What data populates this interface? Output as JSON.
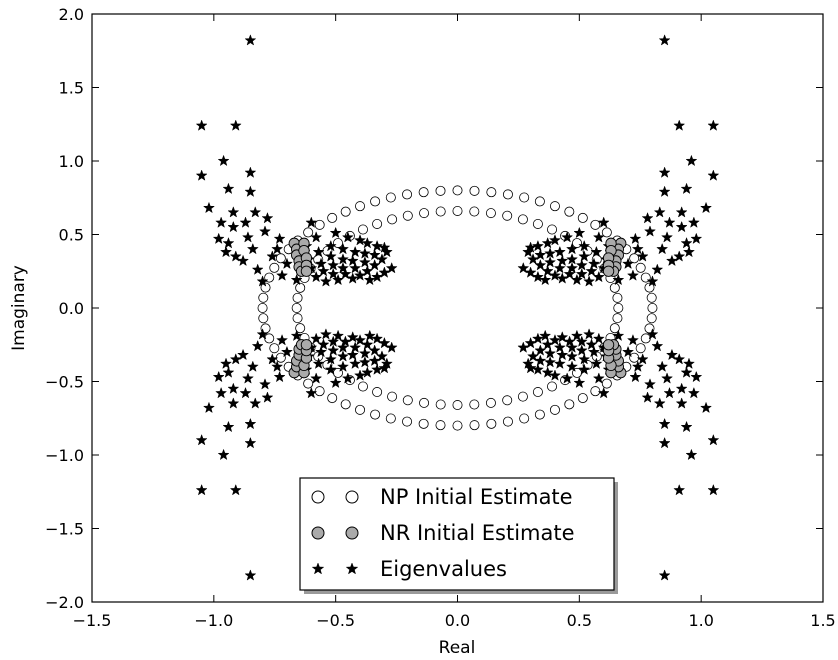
{
  "chart_data": {
    "type": "scatter",
    "xlabel": "Real",
    "ylabel": "Imaginary",
    "xlim": [
      -1.5,
      1.5
    ],
    "ylim": [
      -2.0,
      2.0
    ],
    "xticks": [
      -1.5,
      -1.0,
      -0.5,
      0.0,
      0.5,
      1.0,
      1.5
    ],
    "yticks": [
      -2.0,
      -1.5,
      -1.0,
      -0.5,
      0.0,
      0.5,
      1.0,
      1.5,
      2.0
    ],
    "xtick_labels": [
      "−1.5",
      "−1.0",
      "−0.5",
      "0.0",
      "0.5",
      "1.0",
      "1.5"
    ],
    "ytick_labels": [
      "−2.0",
      "−1.5",
      "−1.0",
      "−0.5",
      "0.0",
      "0.5",
      "1.0",
      "1.5",
      "2.0"
    ],
    "grid": false,
    "legend_position": "bottom-center",
    "series": [
      {
        "name": "NP Initial Estimate",
        "marker": "circle",
        "face_color": "#ffffff",
        "edge_color": "#000000",
        "ellipses": [
          {
            "cx": 0.0,
            "cy": 0.0,
            "rx": 0.8,
            "ry": 0.8,
            "count": 72
          },
          {
            "cx": 0.0,
            "cy": 0.0,
            "rx": 0.66,
            "ry": 0.66,
            "count": 60
          }
        ]
      },
      {
        "name": "NR Initial Estimate",
        "marker": "circle",
        "face_color": "#aaaaaa",
        "edge_color": "#000000",
        "points": [
          [
            -0.67,
            0.44
          ],
          [
            -0.66,
            0.4
          ],
          [
            -0.66,
            0.36
          ],
          [
            -0.65,
            0.32
          ],
          [
            -0.65,
            0.28
          ],
          [
            -0.64,
            0.25
          ],
          [
            -0.63,
            0.44
          ],
          [
            -0.63,
            0.39
          ],
          [
            -0.62,
            0.34
          ],
          [
            -0.62,
            0.29
          ],
          [
            -0.62,
            0.25
          ],
          [
            -0.67,
            -0.44
          ],
          [
            -0.66,
            -0.4
          ],
          [
            -0.66,
            -0.36
          ],
          [
            -0.65,
            -0.32
          ],
          [
            -0.65,
            -0.28
          ],
          [
            -0.64,
            -0.25
          ],
          [
            -0.63,
            -0.44
          ],
          [
            -0.63,
            -0.39
          ],
          [
            -0.62,
            -0.34
          ],
          [
            -0.62,
            -0.29
          ],
          [
            -0.62,
            -0.25
          ],
          [
            0.67,
            0.44
          ],
          [
            0.66,
            0.4
          ],
          [
            0.66,
            0.36
          ],
          [
            0.65,
            0.32
          ],
          [
            0.65,
            0.28
          ],
          [
            0.64,
            0.25
          ],
          [
            0.63,
            0.44
          ],
          [
            0.63,
            0.39
          ],
          [
            0.62,
            0.34
          ],
          [
            0.62,
            0.29
          ],
          [
            0.62,
            0.25
          ],
          [
            0.67,
            -0.44
          ],
          [
            0.66,
            -0.4
          ],
          [
            0.66,
            -0.36
          ],
          [
            0.65,
            -0.32
          ],
          [
            0.65,
            -0.28
          ],
          [
            0.64,
            -0.25
          ],
          [
            0.63,
            -0.44
          ],
          [
            0.63,
            -0.39
          ],
          [
            0.62,
            -0.34
          ],
          [
            0.62,
            -0.29
          ],
          [
            0.62,
            -0.25
          ]
        ]
      },
      {
        "name": "Eigenvalues",
        "marker": "star",
        "face_color": "#000000",
        "edge_color": "#000000",
        "symmetry": "quadrants",
        "first_quadrant_points": [
          [
            0.85,
            1.82
          ],
          [
            0.91,
            1.24
          ],
          [
            1.05,
            1.24
          ],
          [
            0.96,
            1.0
          ],
          [
            0.85,
            0.92
          ],
          [
            1.05,
            0.9
          ],
          [
            0.94,
            0.81
          ],
          [
            0.85,
            0.79
          ],
          [
            1.02,
            0.68
          ],
          [
            0.83,
            0.65
          ],
          [
            0.92,
            0.65
          ],
          [
            0.78,
            0.61
          ],
          [
            0.87,
            0.58
          ],
          [
            0.92,
            0.55
          ],
          [
            0.97,
            0.58
          ],
          [
            0.79,
            0.52
          ],
          [
            0.86,
            0.48
          ],
          [
            0.94,
            0.44
          ],
          [
            0.98,
            0.47
          ],
          [
            0.84,
            0.4
          ],
          [
            0.91,
            0.35
          ],
          [
            0.95,
            0.38
          ],
          [
            0.76,
            0.35
          ],
          [
            0.82,
            0.26
          ],
          [
            0.88,
            0.32
          ],
          [
            0.8,
            0.18
          ],
          [
            0.6,
            0.58
          ],
          [
            0.5,
            0.51
          ],
          [
            0.58,
            0.48
          ],
          [
            0.62,
            0.42
          ],
          [
            0.45,
            0.48
          ],
          [
            0.52,
            0.42
          ],
          [
            0.57,
            0.38
          ],
          [
            0.61,
            0.33
          ],
          [
            0.4,
            0.46
          ],
          [
            0.47,
            0.4
          ],
          [
            0.52,
            0.35
          ],
          [
            0.56,
            0.3
          ],
          [
            0.6,
            0.27
          ],
          [
            0.37,
            0.44
          ],
          [
            0.42,
            0.38
          ],
          [
            0.47,
            0.33
          ],
          [
            0.51,
            0.29
          ],
          [
            0.55,
            0.25
          ],
          [
            0.58,
            0.21
          ],
          [
            0.33,
            0.42
          ],
          [
            0.38,
            0.37
          ],
          [
            0.43,
            0.32
          ],
          [
            0.47,
            0.27
          ],
          [
            0.51,
            0.23
          ],
          [
            0.54,
            0.18
          ],
          [
            0.3,
            0.41
          ],
          [
            0.34,
            0.36
          ],
          [
            0.38,
            0.31
          ],
          [
            0.42,
            0.27
          ],
          [
            0.46,
            0.23
          ],
          [
            0.49,
            0.19
          ],
          [
            0.29,
            0.38
          ],
          [
            0.31,
            0.33
          ],
          [
            0.34,
            0.29
          ],
          [
            0.37,
            0.25
          ],
          [
            0.4,
            0.22
          ],
          [
            0.43,
            0.2
          ],
          [
            0.27,
            0.27
          ],
          [
            0.3,
            0.24
          ],
          [
            0.33,
            0.21
          ],
          [
            0.36,
            0.19
          ],
          [
            0.72,
            0.22
          ],
          [
            0.66,
            0.19
          ],
          [
            0.7,
            0.3
          ],
          [
            0.74,
            0.4
          ],
          [
            0.73,
            0.47
          ]
        ]
      }
    ]
  },
  "legend": {
    "items": [
      {
        "label": "NP Initial Estimate",
        "marker": "circle",
        "face_color": "#ffffff"
      },
      {
        "label": "NR Initial Estimate",
        "marker": "circle",
        "face_color": "#aaaaaa"
      },
      {
        "label": "Eigenvalues",
        "marker": "star",
        "face_color": "#000000"
      }
    ]
  }
}
